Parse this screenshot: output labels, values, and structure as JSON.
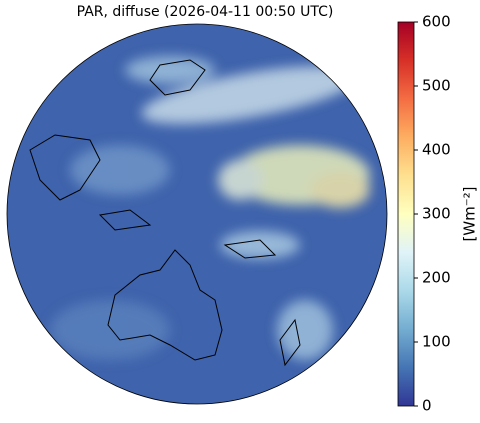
{
  "title": "PAR, diffuse (2026-04-11 00:50 UTC)",
  "colorbar": {
    "label": "[Wm⁻²]",
    "range": [
      0,
      600
    ],
    "ticks": [
      0,
      100,
      200,
      300,
      400,
      500,
      600
    ],
    "colors": [
      "#313695",
      "#4575b4",
      "#74add1",
      "#abd9e9",
      "#e0f3f8",
      "#ffffbf",
      "#fee090",
      "#fdae61",
      "#f46d43",
      "#d73027",
      "#a50026"
    ]
  }
}
